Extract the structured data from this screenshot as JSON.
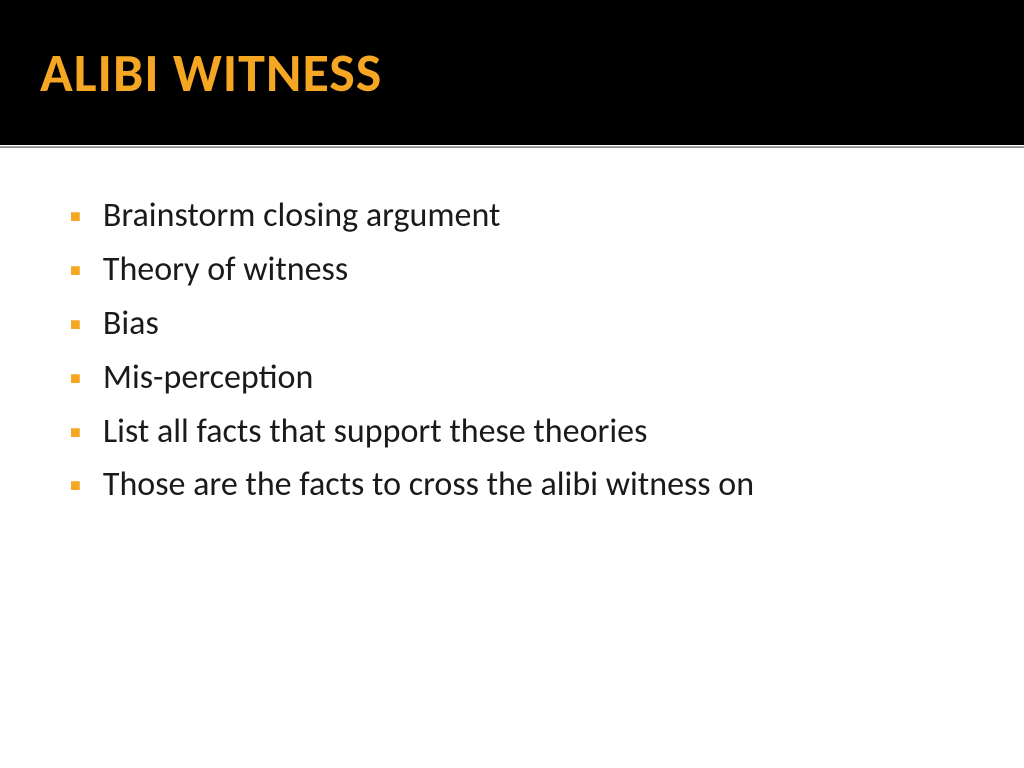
{
  "slide": {
    "title": "ALIBI WITNESS",
    "title_color": "#f5a623",
    "title_fontsize": 54,
    "header_background": "#000000",
    "body_background": "#ffffff",
    "bullet_color": "#f5a623",
    "text_color": "#1a1a1a",
    "text_fontsize": 34,
    "bullets": [
      "Brainstorm closing argument",
      "Theory of witness",
      "Bias",
      "Mis-perception",
      "List all facts  that support these theories",
      "Those are the facts to cross the alibi witness on"
    ]
  }
}
